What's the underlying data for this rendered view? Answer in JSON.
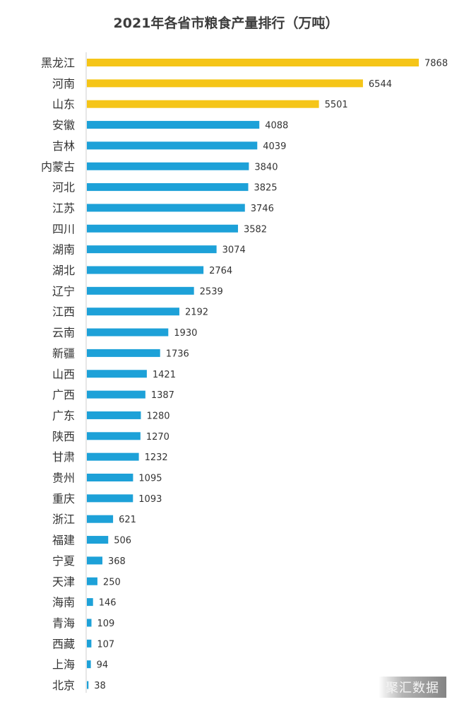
{
  "chart_data": {
    "type": "bar",
    "orientation": "horizontal",
    "title": "2021年各省市粮食产量排行（万吨）",
    "xlabel": "",
    "ylabel": "",
    "xlim": [
      0,
      7868
    ],
    "grid": false,
    "legend": "none",
    "colors": {
      "top3": "#f5c518",
      "others": "#1da1d8",
      "axis": "#cfcfcf",
      "label": "#333333"
    },
    "highlight_count": 3,
    "categories": [
      "黑龙江",
      "河南",
      "山东",
      "安徽",
      "吉林",
      "内蒙古",
      "河北",
      "江苏",
      "四川",
      "湖南",
      "湖北",
      "辽宁",
      "江西",
      "云南",
      "新疆",
      "山西",
      "广西",
      "广东",
      "陕西",
      "甘肃",
      "贵州",
      "重庆",
      "浙江",
      "福建",
      "宁夏",
      "天津",
      "海南",
      "青海",
      "西藏",
      "上海",
      "北京"
    ],
    "values": [
      7868,
      6544,
      5501,
      4088,
      4039,
      3840,
      3825,
      3746,
      3582,
      3074,
      2764,
      2539,
      2192,
      1930,
      1736,
      1421,
      1387,
      1280,
      1270,
      1232,
      1095,
      1093,
      621,
      506,
      368,
      250,
      146,
      109,
      107,
      94,
      38
    ]
  },
  "watermark": "聚汇数据"
}
